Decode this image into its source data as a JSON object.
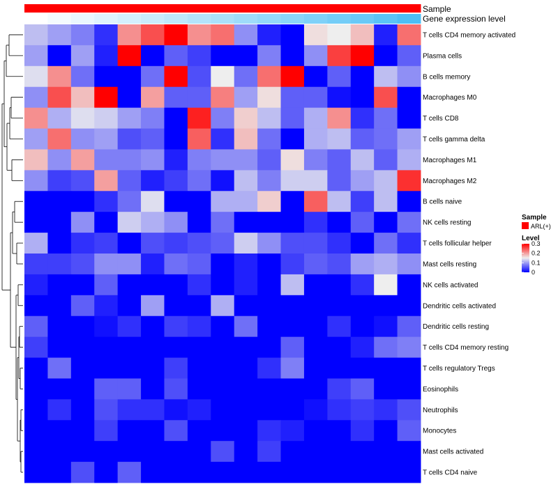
{
  "chart_data": {
    "type": "heatmap",
    "title": "",
    "annotations": [
      {
        "name": "Sample"
      },
      {
        "name": "Gene expression level"
      }
    ],
    "rows": [
      "T cells CD4 memory activated",
      "Plasma cells",
      "B cells memory",
      "Macrophages M0",
      "T cells CD8",
      "T cells gamma delta",
      "Macrophages M1",
      "Macrophages M2",
      "B cells naive",
      "NK cells resting",
      "T cells follicular helper",
      "Mast cells resting",
      "NK cells activated",
      "Dendritic cells activated",
      "Dendritic cells resting",
      "T cells CD4 memory resting",
      "T cells regulatory  Tregs",
      "Eosinophils",
      "Neutrophils",
      "Monocytes",
      "Mast cells activated",
      "T cells CD4 naive"
    ],
    "num_columns": 17,
    "values": [
      [
        0.12,
        0.1,
        0.08,
        0.03,
        0.21,
        0.25,
        0.3,
        0.21,
        0.23,
        0.09,
        0.02,
        0.0,
        0.16,
        0.15,
        0.18,
        0.02,
        0.23
      ],
      [
        0.1,
        0.0,
        0.1,
        0.02,
        0.3,
        0.0,
        0.06,
        0.04,
        0.0,
        0.0,
        0.08,
        0.0,
        0.09,
        0.26,
        0.3,
        0.0,
        0.06
      ],
      [
        0.14,
        0.21,
        0.07,
        0.0,
        0.0,
        0.07,
        0.3,
        0.05,
        0.15,
        0.07,
        0.23,
        0.3,
        0.0,
        0.06,
        0.0,
        0.12,
        0.09
      ],
      [
        0.09,
        0.25,
        0.18,
        0.3,
        0.0,
        0.2,
        0.06,
        0.06,
        0.22,
        0.1,
        0.16,
        0.06,
        0.06,
        0.01,
        0.0,
        0.25,
        0.0
      ],
      [
        0.21,
        0.11,
        0.14,
        0.13,
        0.1,
        0.08,
        0.0,
        0.28,
        0.08,
        0.17,
        0.12,
        0.06,
        0.11,
        0.21,
        0.03,
        0.07,
        0.0
      ],
      [
        0.1,
        0.23,
        0.09,
        0.1,
        0.05,
        0.06,
        0.0,
        0.24,
        0.03,
        0.18,
        0.07,
        0.0,
        0.11,
        0.12,
        0.06,
        0.07,
        0.1
      ],
      [
        0.18,
        0.09,
        0.2,
        0.08,
        0.08,
        0.09,
        0.02,
        0.08,
        0.09,
        0.09,
        0.06,
        0.16,
        0.08,
        0.06,
        0.12,
        0.06,
        0.11
      ],
      [
        0.09,
        0.04,
        0.05,
        0.2,
        0.06,
        0.02,
        0.04,
        0.07,
        0.01,
        0.12,
        0.08,
        0.13,
        0.13,
        0.06,
        0.1,
        0.12,
        0.27
      ],
      [
        0.0,
        0.0,
        0.0,
        0.03,
        0.07,
        0.14,
        0.0,
        0.0,
        0.11,
        0.11,
        0.17,
        0.0,
        0.24,
        0.12,
        0.04,
        0.12,
        0.0
      ],
      [
        0.0,
        0.0,
        0.09,
        0.0,
        0.13,
        0.11,
        0.09,
        0.0,
        0.07,
        0.0,
        0.0,
        0.0,
        0.03,
        0.0,
        0.06,
        0.0,
        0.07
      ],
      [
        0.11,
        0.0,
        0.03,
        0.04,
        0.0,
        0.05,
        0.04,
        0.05,
        0.06,
        0.13,
        0.09,
        0.05,
        0.05,
        0.03,
        0.0,
        0.07,
        0.03
      ],
      [
        0.04,
        0.04,
        0.05,
        0.09,
        0.09,
        0.02,
        0.07,
        0.06,
        0.0,
        0.02,
        0.0,
        0.04,
        0.06,
        0.05,
        0.1,
        0.11,
        0.09
      ],
      [
        0.02,
        0.0,
        0.0,
        0.06,
        0.0,
        0.0,
        0.0,
        0.03,
        0.0,
        0.02,
        0.0,
        0.12,
        0.0,
        0.0,
        0.03,
        0.15,
        0.0
      ],
      [
        0.0,
        0.0,
        0.06,
        0.02,
        0.0,
        0.1,
        0.0,
        0.0,
        0.11,
        0.0,
        0.0,
        0.0,
        0.0,
        0.0,
        0.0,
        0.0,
        0.0
      ],
      [
        0.06,
        0.0,
        0.0,
        0.01,
        0.03,
        0.0,
        0.04,
        0.03,
        0.0,
        0.07,
        0.0,
        0.0,
        0.0,
        0.03,
        0.0,
        0.01,
        0.06
      ],
      [
        0.04,
        0.0,
        0.0,
        0.0,
        0.0,
        0.0,
        0.0,
        0.0,
        0.0,
        0.0,
        0.0,
        0.06,
        0.0,
        0.0,
        0.02,
        0.07,
        0.08
      ],
      [
        0.0,
        0.07,
        0.0,
        0.0,
        0.0,
        0.0,
        0.04,
        0.0,
        0.0,
        0.0,
        0.03,
        0.08,
        0.0,
        0.0,
        0.0,
        0.0,
        0.0
      ],
      [
        0.0,
        0.0,
        0.0,
        0.06,
        0.06,
        0.0,
        0.05,
        0.0,
        0.0,
        0.0,
        0.0,
        0.0,
        0.0,
        0.04,
        0.06,
        0.0,
        0.0
      ],
      [
        0.0,
        0.03,
        0.0,
        0.05,
        0.03,
        0.03,
        0.01,
        0.02,
        0.0,
        0.0,
        0.0,
        0.0,
        0.01,
        0.03,
        0.04,
        0.03,
        0.05
      ],
      [
        0.0,
        0.0,
        0.0,
        0.04,
        0.0,
        0.0,
        0.05,
        0.0,
        0.0,
        0.0,
        0.03,
        0.02,
        0.0,
        0.0,
        0.03,
        0.0,
        0.06
      ],
      [
        0.0,
        0.0,
        0.0,
        0.0,
        0.0,
        0.0,
        0.0,
        0.0,
        0.05,
        0.0,
        0.04,
        0.0,
        0.0,
        0.0,
        0.0,
        0.0,
        0.0
      ],
      [
        0.0,
        0.0,
        0.05,
        0.0,
        0.06,
        0.0,
        0.0,
        0.0,
        0.0,
        0.0,
        0.0,
        0.0,
        0.0,
        0.0,
        0.0,
        0.0,
        0.0
      ]
    ],
    "sample_annotation": {
      "label": "Sample",
      "title": "Sample",
      "categories": [
        "ARL(+)"
      ],
      "colors": [
        "#ff0000"
      ]
    },
    "expression_annotation": {
      "label": "Gene expression level",
      "color_low": "#ffffff",
      "color_high": "#4dbff5",
      "values": [
        0.0,
        0.06,
        0.12,
        0.18,
        0.24,
        0.3,
        0.36,
        0.42,
        0.48,
        0.54,
        0.6,
        0.66,
        0.72,
        0.78,
        0.84,
        0.92,
        1.0
      ]
    },
    "color_scale": {
      "title": "Level",
      "min": 0,
      "max": 0.3,
      "ticks": [
        0,
        0.1,
        0.2,
        0.3
      ],
      "tick_labels": [
        "0",
        "0.1",
        "0.2",
        "0.3"
      ],
      "low_color": "#0000ff",
      "mid_color": "#eeeeee",
      "high_color": "#ff0000"
    }
  }
}
